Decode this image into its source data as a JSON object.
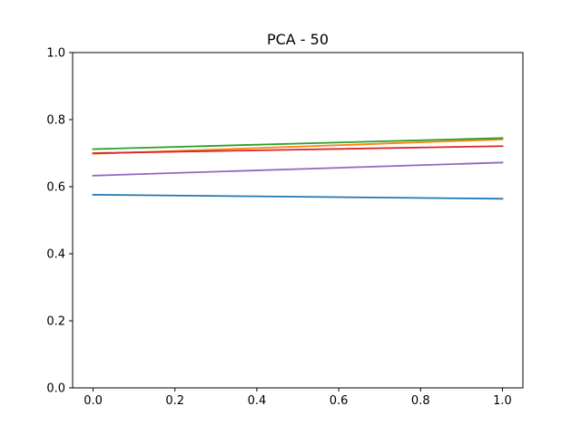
{
  "chart_data": {
    "type": "line",
    "title": "PCA - 50",
    "xlabel": "",
    "ylabel": "",
    "xlim": [
      -0.05,
      1.05
    ],
    "ylim": [
      0.0,
      1.0
    ],
    "xticks": [
      0.0,
      0.2,
      0.4,
      0.6,
      0.8,
      1.0
    ],
    "xtick_labels": [
      "0.0",
      "0.2",
      "0.4",
      "0.6",
      "0.8",
      "1.0"
    ],
    "yticks": [
      0.0,
      0.2,
      0.4,
      0.6,
      0.8,
      1.0
    ],
    "ytick_labels": [
      "0.0",
      "0.2",
      "0.4",
      "0.6",
      "0.8",
      "1.0"
    ],
    "grid": false,
    "x": [
      0.0,
      1.0
    ],
    "series": [
      {
        "color": "#1f77b4",
        "values": [
          0.576,
          0.564
        ]
      },
      {
        "color": "#ff7f0e",
        "values": [
          0.698,
          0.741
        ]
      },
      {
        "color": "#2ca02c",
        "values": [
          0.712,
          0.745
        ]
      },
      {
        "color": "#d62728",
        "values": [
          0.7,
          0.721
        ]
      },
      {
        "color": "#9467bd",
        "values": [
          0.633,
          0.672
        ]
      }
    ]
  }
}
